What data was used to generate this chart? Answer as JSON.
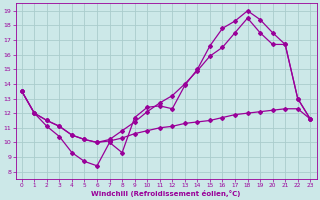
{
  "background_color": "#cce8e8",
  "grid_color": "#aacccc",
  "line_color": "#990099",
  "xlabel": "Windchill (Refroidissement éolien,°C)",
  "xlim": [
    -0.5,
    23.5
  ],
  "ylim": [
    7.5,
    19.5
  ],
  "xticks": [
    0,
    1,
    2,
    3,
    4,
    5,
    6,
    7,
    8,
    9,
    10,
    11,
    12,
    13,
    14,
    15,
    16,
    17,
    18,
    19,
    20,
    21,
    22,
    23
  ],
  "yticks": [
    8,
    9,
    10,
    11,
    12,
    13,
    14,
    15,
    16,
    17,
    18,
    19
  ],
  "line1_x": [
    0,
    1,
    2,
    3,
    4,
    5,
    6,
    7,
    8,
    9,
    10,
    11,
    12,
    13,
    14,
    15,
    16,
    17,
    18,
    19,
    20,
    21,
    22,
    23
  ],
  "line1_y": [
    13.5,
    12.0,
    11.1,
    10.4,
    9.3,
    8.7,
    8.4,
    10.0,
    9.3,
    11.7,
    12.4,
    12.5,
    12.3,
    13.9,
    15.0,
    16.6,
    17.8,
    18.3,
    19.0,
    18.4,
    17.5,
    16.7,
    13.0,
    11.6
  ],
  "line2_x": [
    0,
    1,
    2,
    3,
    4,
    5,
    6,
    7,
    8,
    9,
    10,
    11,
    12,
    13,
    14,
    15,
    16,
    17,
    18,
    19,
    20,
    21,
    22,
    23
  ],
  "line2_y": [
    13.5,
    12.0,
    11.5,
    11.1,
    10.5,
    10.2,
    10.0,
    10.1,
    10.3,
    10.6,
    10.8,
    11.0,
    11.1,
    11.3,
    11.4,
    11.5,
    11.7,
    11.9,
    12.0,
    12.1,
    12.2,
    12.3,
    12.3,
    11.6
  ],
  "line3_x": [
    0,
    1,
    2,
    3,
    4,
    5,
    6,
    7,
    8,
    9,
    10,
    11,
    12,
    13,
    14,
    15,
    16,
    17,
    18,
    19,
    20,
    21,
    22,
    23
  ],
  "line3_y": [
    13.5,
    12.0,
    11.5,
    11.1,
    10.5,
    10.2,
    10.0,
    10.2,
    10.8,
    11.4,
    12.1,
    12.7,
    13.2,
    14.0,
    14.9,
    15.9,
    16.5,
    17.5,
    18.5,
    17.5,
    16.7,
    16.7,
    13.0,
    11.6
  ]
}
